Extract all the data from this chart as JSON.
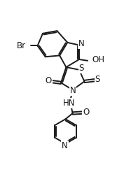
{
  "background": "#ffffff",
  "line_color": "#1a1a1a",
  "line_width": 1.4,
  "font_size": 8.5,
  "figsize": [
    1.87,
    2.46
  ],
  "dpi": 100,
  "xlim": [
    0,
    10
  ],
  "ylim": [
    0,
    13
  ]
}
